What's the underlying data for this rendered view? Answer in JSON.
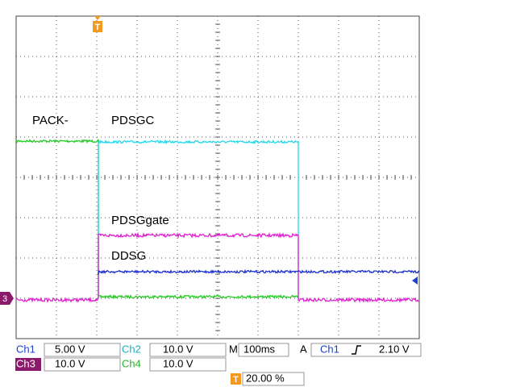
{
  "trace_labels": [
    "PACK-",
    "PDSGC",
    "PDSGgate",
    "DDSG"
  ],
  "channel_marker": "3",
  "trigger_marker": "T",
  "status": {
    "ch1": {
      "label": "Ch1",
      "scale": "5.00 V"
    },
    "ch2": {
      "label": "Ch2",
      "scale": "10.0 V"
    },
    "ch3": {
      "label": "Ch3",
      "scale": "10.0 V"
    },
    "ch4": {
      "label": "Ch4",
      "scale": "10.0 V"
    },
    "timebase": {
      "label": "M",
      "value": "100ms"
    },
    "trigger": {
      "label": "A",
      "source": "Ch1",
      "level": "2.10 V"
    },
    "position": {
      "marker": "T",
      "value": "20.00 %"
    }
  }
}
